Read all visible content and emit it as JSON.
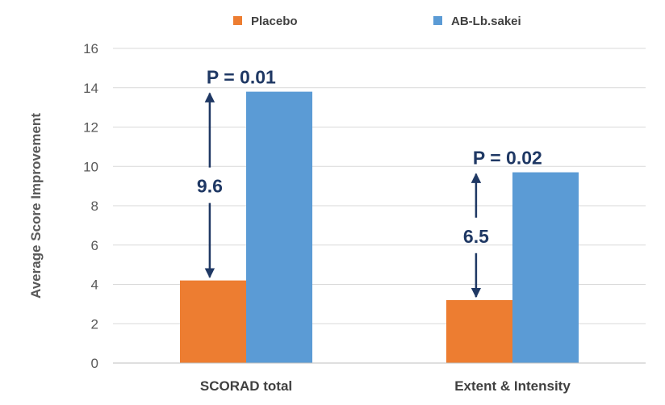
{
  "chart_data": {
    "type": "bar",
    "title": "",
    "xlabel": "",
    "ylabel": "Average Score Improvement",
    "ylim": [
      0,
      16
    ],
    "yticks": [
      0,
      2,
      4,
      6,
      8,
      10,
      12,
      14,
      16
    ],
    "grid": true,
    "legend_position": "top-center",
    "categories": [
      "SCORAD total",
      "Extent & Intensity"
    ],
    "series": [
      {
        "name": "Placebo",
        "color": "#ed7d31",
        "values": [
          4.2,
          3.2
        ]
      },
      {
        "name": "AB-Lb.sakei",
        "color": "#5b9bd5",
        "values": [
          13.8,
          9.7
        ]
      }
    ],
    "annotations": [
      {
        "category": "SCORAD total",
        "difference_label": "9.6",
        "p_value_label": "P = 0.01"
      },
      {
        "category": "Extent & Intensity",
        "difference_label": "6.5",
        "p_value_label": "P = 0.02"
      }
    ]
  }
}
